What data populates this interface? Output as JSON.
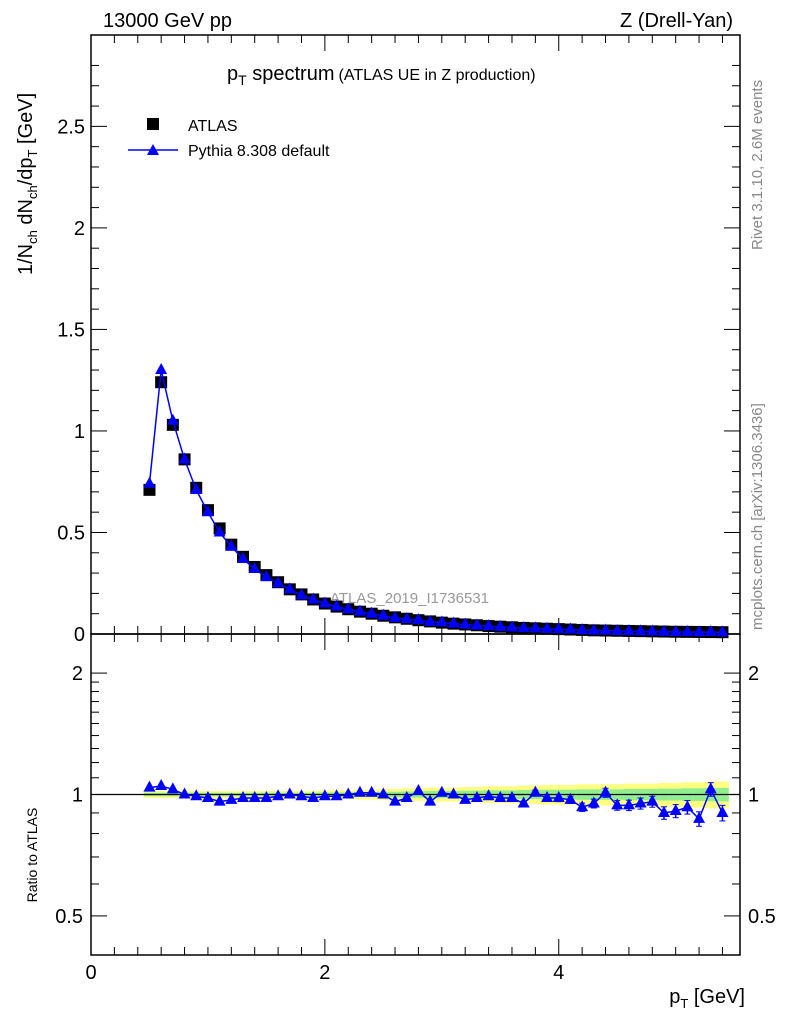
{
  "header": {
    "left": "13000 GeV pp",
    "right": "Z (Drell-Yan)"
  },
  "side": {
    "rivet": "Rivet 3.1.10,  2.6M events",
    "mcplots": "mcplots.cern.ch [arXiv:1306.3436]"
  },
  "watermark": "ATLAS_2019_I1736531",
  "chart_data": [
    {
      "type": "scatter",
      "panel": "main",
      "title": "p_T spectrum",
      "title_main": "p",
      "title_sub": "T",
      "title_rest": " spectrum",
      "subtitle": "(ATLAS UE in Z production)",
      "ylabel": "1/N_ch dN_ch/dp_T [GeV]",
      "xlim": [
        0,
        5.55
      ],
      "ylim": [
        0,
        2.95
      ],
      "yticks": [
        0,
        0.5,
        1,
        1.5,
        2,
        2.5
      ],
      "ytick_labels": [
        "0",
        "0.5",
        "1",
        "1.5",
        "2",
        "2.5"
      ],
      "legend": {
        "placement": "top-left",
        "entries": [
          "ATLAS",
          "Pythia 8.308 default"
        ]
      },
      "x": [
        0.5,
        0.6,
        0.7,
        0.8,
        0.9,
        1.0,
        1.1,
        1.2,
        1.3,
        1.4,
        1.5,
        1.6,
        1.7,
        1.8,
        1.9,
        2.0,
        2.1,
        2.2,
        2.3,
        2.4,
        2.5,
        2.6,
        2.7,
        2.8,
        2.9,
        3.0,
        3.1,
        3.2,
        3.3,
        3.4,
        3.5,
        3.6,
        3.7,
        3.8,
        3.9,
        4.0,
        4.1,
        4.2,
        4.3,
        4.4,
        4.5,
        4.6,
        4.7,
        4.8,
        4.9,
        5.0,
        5.1,
        5.2,
        5.3,
        5.4
      ],
      "series": [
        {
          "name": "ATLAS",
          "color": "#000000",
          "marker": "square",
          "values": [
            0.71,
            1.24,
            1.03,
            0.86,
            0.72,
            0.61,
            0.52,
            0.44,
            0.38,
            0.33,
            0.29,
            0.255,
            0.22,
            0.195,
            0.17,
            0.15,
            0.135,
            0.122,
            0.11,
            0.1,
            0.09,
            0.082,
            0.075,
            0.068,
            0.062,
            0.056,
            0.051,
            0.047,
            0.043,
            0.039,
            0.036,
            0.033,
            0.03,
            0.028,
            0.026,
            0.024,
            0.022,
            0.02,
            0.018,
            0.017,
            0.016,
            0.015,
            0.014,
            0.013,
            0.012,
            0.011,
            0.0105,
            0.01,
            0.0095,
            0.009
          ]
        },
        {
          "name": "Pythia 8.308 default",
          "color": "#0000ff",
          "marker": "triangle",
          "values": [
            0.74,
            1.3,
            1.05,
            0.86,
            0.71,
            0.6,
            0.5,
            0.43,
            0.37,
            0.32,
            0.28,
            0.25,
            0.22,
            0.19,
            0.17,
            0.15,
            0.135,
            0.122,
            0.11,
            0.1,
            0.09,
            0.079,
            0.073,
            0.069,
            0.06,
            0.057,
            0.051,
            0.046,
            0.042,
            0.039,
            0.035,
            0.032,
            0.029,
            0.028,
            0.025,
            0.024,
            0.022,
            0.019,
            0.017,
            0.017,
            0.015,
            0.014,
            0.013,
            0.013,
            0.011,
            0.01,
            0.0098,
            0.0087,
            0.0098,
            0.0081
          ]
        }
      ]
    },
    {
      "type": "line",
      "panel": "ratio",
      "ylabel": "Ratio to ATLAS",
      "xlabel": "p_T [GeV]",
      "xlabel_main": "p",
      "xlabel_sub": "T",
      "xlabel_rest": " [GeV]",
      "xlim": [
        0,
        5.55
      ],
      "ylim": [
        0.4,
        2.5
      ],
      "yscale": "log",
      "yticks": [
        0.5,
        1,
        2
      ],
      "ytick_labels": [
        "0.5",
        "1",
        "2"
      ],
      "xticks": [
        0,
        2,
        4
      ],
      "xtick_labels": [
        "0",
        "2",
        "4"
      ],
      "band_colors": {
        "inner": "#90ee90",
        "outer": "#ffff80"
      },
      "x": [
        0.5,
        0.6,
        0.7,
        0.8,
        0.9,
        1.0,
        1.1,
        1.2,
        1.3,
        1.4,
        1.5,
        1.6,
        1.7,
        1.8,
        1.9,
        2.0,
        2.1,
        2.2,
        2.3,
        2.4,
        2.5,
        2.6,
        2.7,
        2.8,
        2.9,
        3.0,
        3.1,
        3.2,
        3.3,
        3.4,
        3.5,
        3.6,
        3.7,
        3.8,
        3.9,
        4.0,
        4.1,
        4.2,
        4.3,
        4.4,
        4.5,
        4.6,
        4.7,
        4.8,
        4.9,
        5.0,
        5.1,
        5.2,
        5.3,
        5.4
      ],
      "values": [
        1.04,
        1.05,
        1.03,
        1.0,
        0.99,
        0.98,
        0.96,
        0.97,
        0.98,
        0.98,
        0.98,
        0.99,
        1.0,
        0.99,
        0.98,
        0.99,
        0.99,
        1.0,
        1.01,
        1.01,
        1.0,
        0.96,
        0.98,
        1.02,
        0.96,
        1.01,
        1.0,
        0.97,
        0.98,
        0.99,
        0.98,
        0.98,
        0.95,
        1.01,
        0.98,
        0.98,
        0.97,
        0.93,
        0.95,
        1.01,
        0.94,
        0.94,
        0.95,
        0.96,
        0.9,
        0.91,
        0.93,
        0.87,
        1.03,
        0.9
      ],
      "errors": [
        0.005,
        0.005,
        0.005,
        0.005,
        0.005,
        0.005,
        0.005,
        0.005,
        0.005,
        0.005,
        0.005,
        0.005,
        0.005,
        0.005,
        0.005,
        0.005,
        0.005,
        0.005,
        0.005,
        0.005,
        0.005,
        0.005,
        0.005,
        0.005,
        0.005,
        0.008,
        0.008,
        0.008,
        0.01,
        0.01,
        0.012,
        0.012,
        0.014,
        0.016,
        0.018,
        0.02,
        0.02,
        0.022,
        0.024,
        0.026,
        0.026,
        0.028,
        0.03,
        0.03,
        0.032,
        0.034,
        0.036,
        0.036,
        0.04,
        0.04
      ],
      "band": [
        0.01,
        0.01,
        0.01,
        0.01,
        0.01,
        0.01,
        0.01,
        0.01,
        0.01,
        0.01,
        0.01,
        0.01,
        0.01,
        0.01,
        0.01,
        0.012,
        0.012,
        0.012,
        0.014,
        0.014,
        0.016,
        0.016,
        0.018,
        0.018,
        0.02,
        0.02,
        0.02,
        0.022,
        0.022,
        0.024,
        0.024,
        0.024,
        0.026,
        0.026,
        0.028,
        0.028,
        0.028,
        0.03,
        0.03,
        0.03,
        0.03,
        0.032,
        0.032,
        0.032,
        0.034,
        0.034,
        0.036,
        0.036,
        0.038,
        0.038
      ]
    }
  ]
}
